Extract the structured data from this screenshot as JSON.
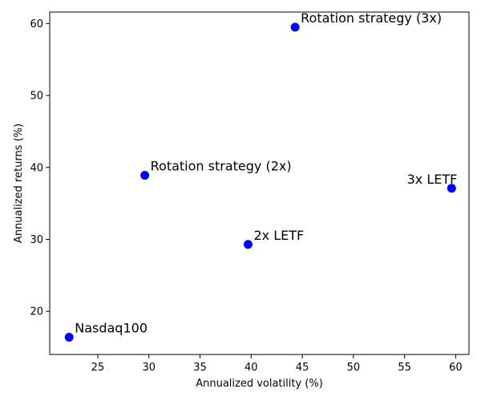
{
  "chart_data": {
    "type": "scatter",
    "title": "",
    "xlabel": "Annualized volatility (%)",
    "ylabel": "Annualized returns (%)",
    "xlim": [
      20.3,
      61.3
    ],
    "ylim": [
      14.0,
      61.6
    ],
    "xticks": [
      25,
      30,
      35,
      40,
      45,
      50,
      55,
      60
    ],
    "yticks": [
      20,
      30,
      40,
      50,
      60
    ],
    "grid": false,
    "marker_color": "#0000ff",
    "points": [
      {
        "label": "Nasdaq100",
        "x": 22.2,
        "y": 16.4,
        "label_anchor": "start"
      },
      {
        "label": "Rotation strategy (2x)",
        "x": 29.6,
        "y": 38.9,
        "label_anchor": "start"
      },
      {
        "label": "2x LETF",
        "x": 39.7,
        "y": 29.3,
        "label_anchor": "start"
      },
      {
        "label": "Rotation strategy (3x)",
        "x": 44.3,
        "y": 59.5,
        "label_anchor": "start"
      },
      {
        "label": "3x LETF",
        "x": 59.6,
        "y": 37.1,
        "label_anchor": "end"
      }
    ]
  }
}
